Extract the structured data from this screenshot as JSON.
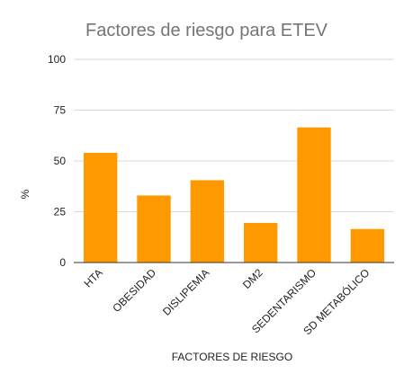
{
  "chart_data": {
    "type": "bar",
    "title": "Factores de riesgo para ETEV",
    "xlabel": "FACTORES DE RIESGO",
    "ylabel": "%",
    "categories": [
      "HTA",
      "OBESIDAD",
      "DISLIPEMIA",
      "DM2",
      "SEDENTARISMO",
      "SD METABÓLICO"
    ],
    "values": [
      54,
      33,
      40.5,
      19.5,
      66.5,
      16.5
    ],
    "ylim": [
      0,
      100
    ],
    "yticks": [
      0,
      25,
      50,
      75,
      100
    ],
    "grid": true,
    "legend": "none",
    "bar_color": "#ff9900"
  }
}
